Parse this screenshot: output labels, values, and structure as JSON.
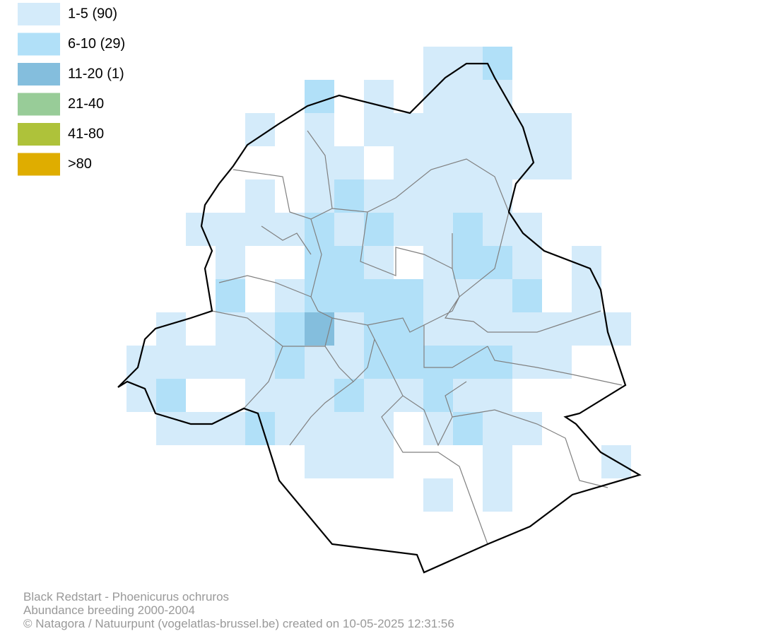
{
  "legend": [
    {
      "label": "1-5 (90)",
      "color": "#d4ebfa"
    },
    {
      "label": "6-10 (29)",
      "color": "#b1e0f8"
    },
    {
      "label": "11-20 (1)",
      "color": "#84bedd"
    },
    {
      "label": "21-40",
      "color": "#98cc98"
    },
    {
      "label": "41-80",
      "color": "#aec23a"
    },
    {
      "label": ">80",
      "color": "#dfad00"
    }
  ],
  "footer": [
    "Black Redstart - Phoenicurus ochruros",
    "Abundance breeding 2000-2004",
    "© Natagora / Natuurpunt (vogelatlas-brussel.be) created on 10-05-2025 12:31:56"
  ]
}
